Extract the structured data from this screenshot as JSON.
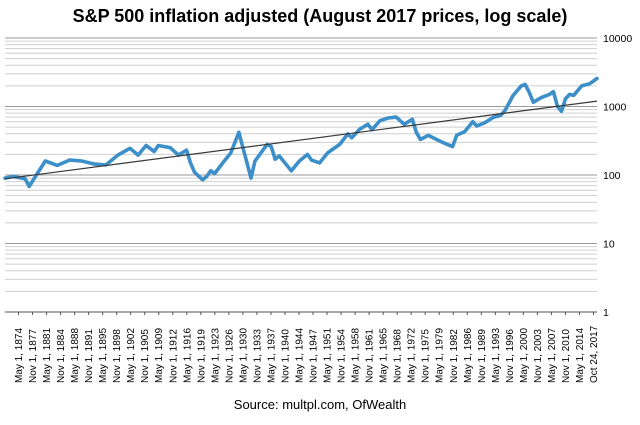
{
  "chart_data": {
    "type": "line",
    "title": "S&P 500 inflation adjusted (August 2017 prices, log scale)",
    "source": "Source: multpl.com, OfWealth",
    "y_scale": "log",
    "ylim": [
      1,
      10000
    ],
    "y_ticks": [
      {
        "value": 1,
        "label": "1"
      },
      {
        "value": 10,
        "label": "10"
      },
      {
        "value": 100,
        "label": "100"
      },
      {
        "value": 1000,
        "label": "1000"
      },
      {
        "value": 10000,
        "label": "10000"
      }
    ],
    "x_tick_labels": [
      "May 1, 1874",
      "Nov 1, 1877",
      "May 1, 1881",
      "Nov 1, 1884",
      "May 1, 1888",
      "Nov 1, 1891",
      "May 1, 1895",
      "Nov 1, 1898",
      "May 1, 1902",
      "Nov 1, 1905",
      "May 1, 1909",
      "Nov 1, 1912",
      "May 1, 1916",
      "Nov 1, 1919",
      "May 1, 1923",
      "Nov 1, 1926",
      "May 1, 1930",
      "Nov 1, 1933",
      "May 1, 1937",
      "Nov 1, 1940",
      "May 1, 1944",
      "Nov 1, 1947",
      "May 1, 1951",
      "Nov 1, 1954",
      "May 1, 1958",
      "Nov 1, 1961",
      "May 1, 1965",
      "Nov 1, 1968",
      "May 1, 1972",
      "Nov 1, 1975",
      "May 1, 1979",
      "Nov 1, 1982",
      "May 1, 1986",
      "Nov 1, 1989",
      "May 1, 1993",
      "Nov 1, 1996",
      "May 1, 2000",
      "Nov 1, 2003",
      "May 1, 2007",
      "Nov 1, 2010",
      "May 1, 2014",
      "Oct 24, 2017"
    ],
    "grid": true,
    "series": [
      {
        "type": "line",
        "color": "#3d8fc9",
        "points": [
          [
            1871,
            90
          ],
          [
            1873,
            95
          ],
          [
            1876,
            88
          ],
          [
            1877,
            68
          ],
          [
            1879,
            105
          ],
          [
            1881,
            160
          ],
          [
            1884,
            138
          ],
          [
            1887,
            165
          ],
          [
            1890,
            160
          ],
          [
            1893,
            145
          ],
          [
            1896,
            140
          ],
          [
            1899,
            195
          ],
          [
            1902,
            245
          ],
          [
            1904,
            195
          ],
          [
            1906,
            270
          ],
          [
            1908,
            220
          ],
          [
            1909,
            270
          ],
          [
            1912,
            250
          ],
          [
            1914,
            195
          ],
          [
            1916,
            230
          ],
          [
            1917,
            150
          ],
          [
            1918,
            110
          ],
          [
            1920,
            85
          ],
          [
            1921,
            95
          ],
          [
            1922,
            115
          ],
          [
            1923,
            105
          ],
          [
            1925,
            150
          ],
          [
            1927,
            210
          ],
          [
            1929,
            420
          ],
          [
            1930,
            250
          ],
          [
            1931,
            150
          ],
          [
            1932,
            90
          ],
          [
            1933,
            160
          ],
          [
            1936,
            280
          ],
          [
            1937,
            260
          ],
          [
            1938,
            170
          ],
          [
            1939,
            190
          ],
          [
            1942,
            115
          ],
          [
            1944,
            160
          ],
          [
            1946,
            200
          ],
          [
            1947,
            165
          ],
          [
            1949,
            150
          ],
          [
            1951,
            210
          ],
          [
            1954,
            280
          ],
          [
            1956,
            400
          ],
          [
            1957,
            350
          ],
          [
            1959,
            470
          ],
          [
            1961,
            550
          ],
          [
            1962,
            460
          ],
          [
            1964,
            620
          ],
          [
            1966,
            680
          ],
          [
            1968,
            700
          ],
          [
            1970,
            550
          ],
          [
            1972,
            650
          ],
          [
            1973,
            420
          ],
          [
            1974,
            330
          ],
          [
            1976,
            380
          ],
          [
            1978,
            330
          ],
          [
            1980,
            290
          ],
          [
            1982,
            260
          ],
          [
            1983,
            380
          ],
          [
            1985,
            430
          ],
          [
            1987,
            600
          ],
          [
            1988,
            520
          ],
          [
            1990,
            580
          ],
          [
            1992,
            690
          ],
          [
            1994,
            750
          ],
          [
            1995,
            880
          ],
          [
            1997,
            1450
          ],
          [
            1999,
            2000
          ],
          [
            2000,
            2100
          ],
          [
            2001,
            1600
          ],
          [
            2002,
            1150
          ],
          [
            2004,
            1350
          ],
          [
            2006,
            1500
          ],
          [
            2007,
            1650
          ],
          [
            2008,
            1000
          ],
          [
            2009,
            850
          ],
          [
            2010,
            1300
          ],
          [
            2011,
            1500
          ],
          [
            2012,
            1450
          ],
          [
            2013,
            1700
          ],
          [
            2014,
            2000
          ],
          [
            2016,
            2150
          ],
          [
            2017.8,
            2560
          ]
        ]
      },
      {
        "type": "trendline",
        "color": "#3a3a3a",
        "points": [
          [
            1871,
            88
          ],
          [
            2017.8,
            1200
          ]
        ]
      }
    ]
  }
}
